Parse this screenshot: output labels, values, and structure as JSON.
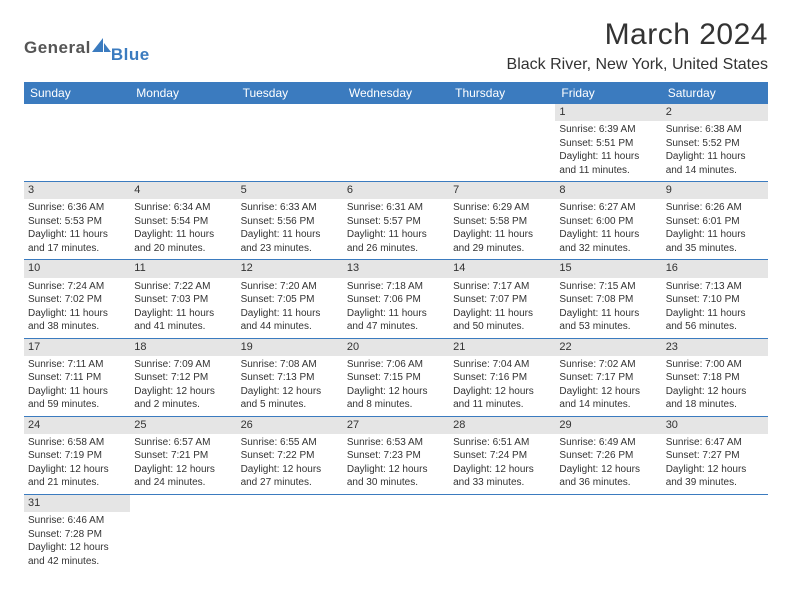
{
  "logo": {
    "text1": "General",
    "text2": "Blue"
  },
  "title": "March 2024",
  "location": "Black River, New York, United States",
  "colors": {
    "header_bg": "#3b7bbf",
    "header_fg": "#ffffff",
    "daynum_bg": "#e5e5e5",
    "row_border": "#3b7bbf",
    "text": "#333333",
    "logo_gray": "#555555",
    "logo_blue": "#3b7bbf",
    "page_bg": "#ffffff"
  },
  "typography": {
    "title_fontsize": 30,
    "location_fontsize": 16,
    "header_fontsize": 12,
    "daynum_fontsize": 11,
    "body_fontsize": 10
  },
  "weekdays": [
    "Sunday",
    "Monday",
    "Tuesday",
    "Wednesday",
    "Thursday",
    "Friday",
    "Saturday"
  ],
  "weeks": [
    [
      {
        "num": "",
        "lines": []
      },
      {
        "num": "",
        "lines": []
      },
      {
        "num": "",
        "lines": []
      },
      {
        "num": "",
        "lines": []
      },
      {
        "num": "",
        "lines": []
      },
      {
        "num": "1",
        "lines": [
          "Sunrise: 6:39 AM",
          "Sunset: 5:51 PM",
          "Daylight: 11 hours and 11 minutes."
        ]
      },
      {
        "num": "2",
        "lines": [
          "Sunrise: 6:38 AM",
          "Sunset: 5:52 PM",
          "Daylight: 11 hours and 14 minutes."
        ]
      }
    ],
    [
      {
        "num": "3",
        "lines": [
          "Sunrise: 6:36 AM",
          "Sunset: 5:53 PM",
          "Daylight: 11 hours and 17 minutes."
        ]
      },
      {
        "num": "4",
        "lines": [
          "Sunrise: 6:34 AM",
          "Sunset: 5:54 PM",
          "Daylight: 11 hours and 20 minutes."
        ]
      },
      {
        "num": "5",
        "lines": [
          "Sunrise: 6:33 AM",
          "Sunset: 5:56 PM",
          "Daylight: 11 hours and 23 minutes."
        ]
      },
      {
        "num": "6",
        "lines": [
          "Sunrise: 6:31 AM",
          "Sunset: 5:57 PM",
          "Daylight: 11 hours and 26 minutes."
        ]
      },
      {
        "num": "7",
        "lines": [
          "Sunrise: 6:29 AM",
          "Sunset: 5:58 PM",
          "Daylight: 11 hours and 29 minutes."
        ]
      },
      {
        "num": "8",
        "lines": [
          "Sunrise: 6:27 AM",
          "Sunset: 6:00 PM",
          "Daylight: 11 hours and 32 minutes."
        ]
      },
      {
        "num": "9",
        "lines": [
          "Sunrise: 6:26 AM",
          "Sunset: 6:01 PM",
          "Daylight: 11 hours and 35 minutes."
        ]
      }
    ],
    [
      {
        "num": "10",
        "lines": [
          "Sunrise: 7:24 AM",
          "Sunset: 7:02 PM",
          "Daylight: 11 hours and 38 minutes."
        ]
      },
      {
        "num": "11",
        "lines": [
          "Sunrise: 7:22 AM",
          "Sunset: 7:03 PM",
          "Daylight: 11 hours and 41 minutes."
        ]
      },
      {
        "num": "12",
        "lines": [
          "Sunrise: 7:20 AM",
          "Sunset: 7:05 PM",
          "Daylight: 11 hours and 44 minutes."
        ]
      },
      {
        "num": "13",
        "lines": [
          "Sunrise: 7:18 AM",
          "Sunset: 7:06 PM",
          "Daylight: 11 hours and 47 minutes."
        ]
      },
      {
        "num": "14",
        "lines": [
          "Sunrise: 7:17 AM",
          "Sunset: 7:07 PM",
          "Daylight: 11 hours and 50 minutes."
        ]
      },
      {
        "num": "15",
        "lines": [
          "Sunrise: 7:15 AM",
          "Sunset: 7:08 PM",
          "Daylight: 11 hours and 53 minutes."
        ]
      },
      {
        "num": "16",
        "lines": [
          "Sunrise: 7:13 AM",
          "Sunset: 7:10 PM",
          "Daylight: 11 hours and 56 minutes."
        ]
      }
    ],
    [
      {
        "num": "17",
        "lines": [
          "Sunrise: 7:11 AM",
          "Sunset: 7:11 PM",
          "Daylight: 11 hours and 59 minutes."
        ]
      },
      {
        "num": "18",
        "lines": [
          "Sunrise: 7:09 AM",
          "Sunset: 7:12 PM",
          "Daylight: 12 hours and 2 minutes."
        ]
      },
      {
        "num": "19",
        "lines": [
          "Sunrise: 7:08 AM",
          "Sunset: 7:13 PM",
          "Daylight: 12 hours and 5 minutes."
        ]
      },
      {
        "num": "20",
        "lines": [
          "Sunrise: 7:06 AM",
          "Sunset: 7:15 PM",
          "Daylight: 12 hours and 8 minutes."
        ]
      },
      {
        "num": "21",
        "lines": [
          "Sunrise: 7:04 AM",
          "Sunset: 7:16 PM",
          "Daylight: 12 hours and 11 minutes."
        ]
      },
      {
        "num": "22",
        "lines": [
          "Sunrise: 7:02 AM",
          "Sunset: 7:17 PM",
          "Daylight: 12 hours and 14 minutes."
        ]
      },
      {
        "num": "23",
        "lines": [
          "Sunrise: 7:00 AM",
          "Sunset: 7:18 PM",
          "Daylight: 12 hours and 18 minutes."
        ]
      }
    ],
    [
      {
        "num": "24",
        "lines": [
          "Sunrise: 6:58 AM",
          "Sunset: 7:19 PM",
          "Daylight: 12 hours and 21 minutes."
        ]
      },
      {
        "num": "25",
        "lines": [
          "Sunrise: 6:57 AM",
          "Sunset: 7:21 PM",
          "Daylight: 12 hours and 24 minutes."
        ]
      },
      {
        "num": "26",
        "lines": [
          "Sunrise: 6:55 AM",
          "Sunset: 7:22 PM",
          "Daylight: 12 hours and 27 minutes."
        ]
      },
      {
        "num": "27",
        "lines": [
          "Sunrise: 6:53 AM",
          "Sunset: 7:23 PM",
          "Daylight: 12 hours and 30 minutes."
        ]
      },
      {
        "num": "28",
        "lines": [
          "Sunrise: 6:51 AM",
          "Sunset: 7:24 PM",
          "Daylight: 12 hours and 33 minutes."
        ]
      },
      {
        "num": "29",
        "lines": [
          "Sunrise: 6:49 AM",
          "Sunset: 7:26 PM",
          "Daylight: 12 hours and 36 minutes."
        ]
      },
      {
        "num": "30",
        "lines": [
          "Sunrise: 6:47 AM",
          "Sunset: 7:27 PM",
          "Daylight: 12 hours and 39 minutes."
        ]
      }
    ],
    [
      {
        "num": "31",
        "lines": [
          "Sunrise: 6:46 AM",
          "Sunset: 7:28 PM",
          "Daylight: 12 hours and 42 minutes."
        ]
      },
      {
        "num": "",
        "lines": []
      },
      {
        "num": "",
        "lines": []
      },
      {
        "num": "",
        "lines": []
      },
      {
        "num": "",
        "lines": []
      },
      {
        "num": "",
        "lines": []
      },
      {
        "num": "",
        "lines": []
      }
    ]
  ]
}
